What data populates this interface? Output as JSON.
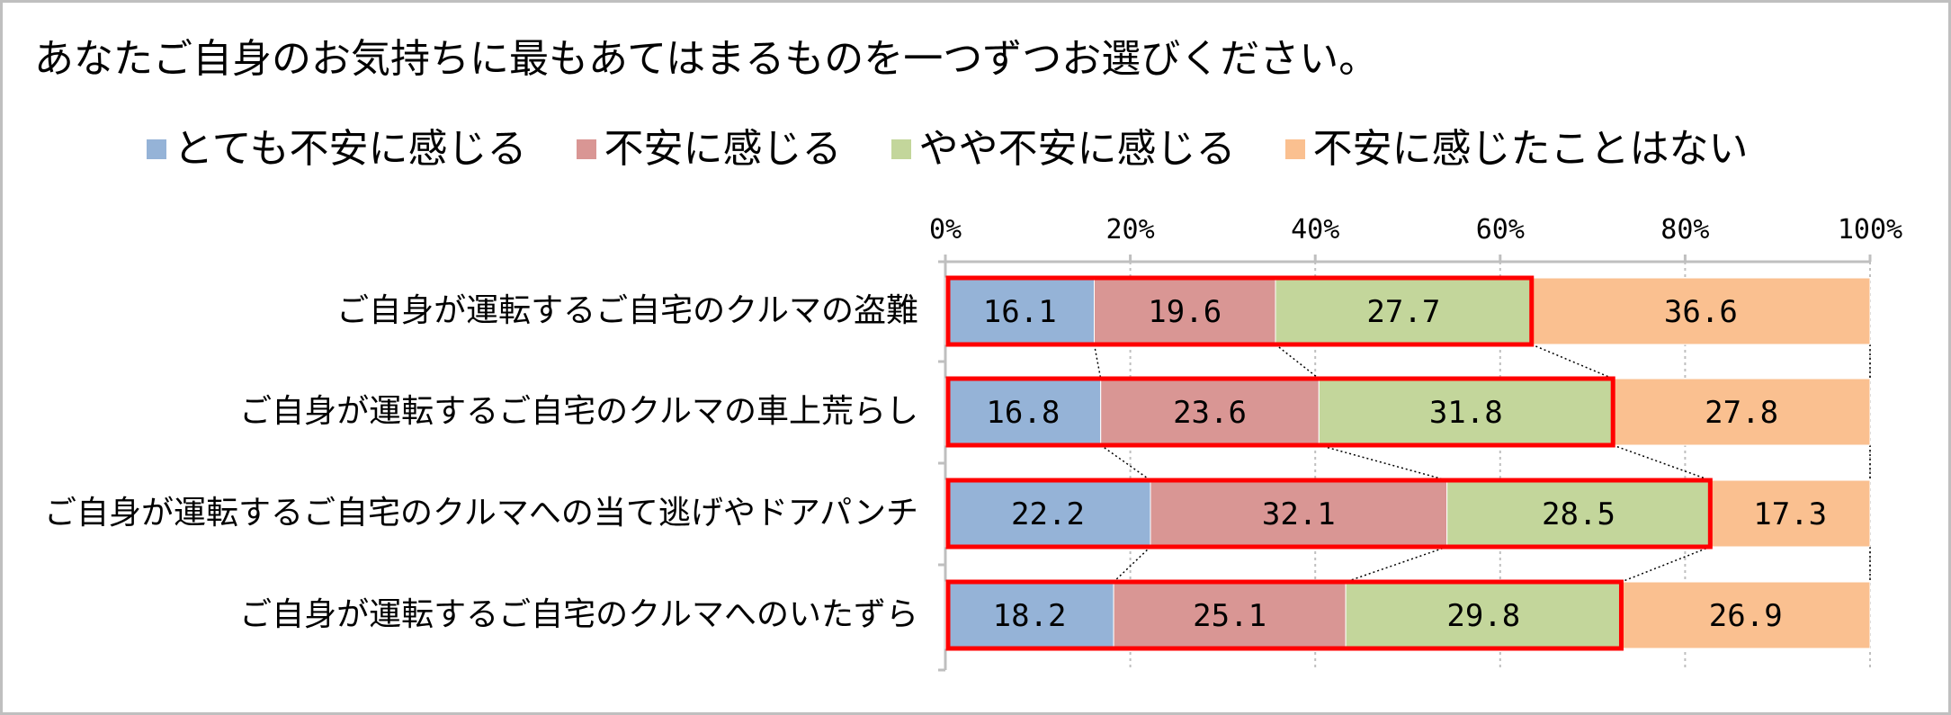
{
  "chart_data": {
    "type": "bar",
    "orientation": "horizontal",
    "stacked": "percent",
    "title": "あなたご自身のお気持ちに最もあてはまるものを一つずつお選びください。",
    "categories": [
      "ご自身が運転するご自宅のクルマの盗難",
      "ご自身が運転するご自宅のクルマの車上荒らし",
      "ご自身が運転するご自宅のクルマへの当て逃げやドアパンチ",
      "ご自身が運転するご自宅のクルマへのいたずら"
    ],
    "series": [
      {
        "name": "とても不安に感じる",
        "color": "#95b3d7",
        "values": [
          16.1,
          16.8,
          22.2,
          18.2
        ]
      },
      {
        "name": "不安に感じる",
        "color": "#d99694",
        "values": [
          19.6,
          23.6,
          32.1,
          25.1
        ]
      },
      {
        "name": "やや不安に感じる",
        "color": "#c3d69b",
        "values": [
          27.7,
          31.8,
          28.5,
          29.8
        ]
      },
      {
        "name": "不安に感じたことはない",
        "color": "#fac090",
        "values": [
          36.6,
          27.8,
          17.3,
          26.9
        ]
      }
    ],
    "data_labels": [
      [
        "16.1",
        "19.6",
        "27.7",
        "36.6"
      ],
      [
        "16.8",
        "23.6",
        "31.8",
        "27.8"
      ],
      [
        "22.2",
        "32.1",
        "28.5",
        "17.3"
      ],
      [
        "18.2",
        "25.1",
        "29.8",
        "26.9"
      ]
    ],
    "xticks": [
      "0%",
      "20%",
      "40%",
      "60%",
      "80%",
      "100%"
    ],
    "xlim": [
      0,
      100
    ],
    "grid": true,
    "legend_position": "top",
    "series_lines": true,
    "highlight": {
      "description": "first three series outlined",
      "color": "#ff0000"
    }
  }
}
